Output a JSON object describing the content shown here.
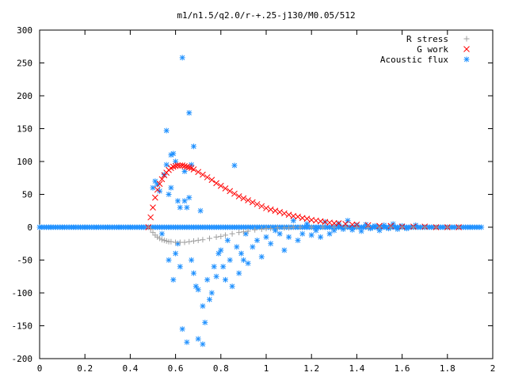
{
  "chart_data": {
    "type": "scatter",
    "title": "m1/n1.5/q2.0/r-+.25-j130/M0.05/512",
    "xlabel": "",
    "ylabel": "",
    "xlim": [
      0,
      2
    ],
    "ylim": [
      -200,
      300
    ],
    "xticks": [
      "0",
      "0.2",
      "0.4",
      "0.6",
      "0.8",
      "1",
      "1.2",
      "1.4",
      "1.6",
      "1.8",
      "2"
    ],
    "xtick_values": [
      0,
      0.2,
      0.4,
      0.6,
      0.8,
      1,
      1.2,
      1.4,
      1.6,
      1.8,
      2
    ],
    "yticks": [
      "300",
      "250",
      "200",
      "150",
      "100",
      "50",
      "0",
      "-50",
      "-100",
      "-150",
      "-200"
    ],
    "ytick_values": [
      300,
      250,
      200,
      150,
      100,
      50,
      0,
      -50,
      -100,
      -150,
      -200
    ],
    "legend_position": "top-right",
    "series": [
      {
        "name": "R stress",
        "marker": "+",
        "color": "#a0a0a0",
        "x": [
          0.48,
          0.49,
          0.5,
          0.51,
          0.52,
          0.53,
          0.54,
          0.55,
          0.56,
          0.57,
          0.58,
          0.6,
          0.62,
          0.64,
          0.66,
          0.68,
          0.7,
          0.72,
          0.75,
          0.78,
          0.8,
          0.82,
          0.85,
          0.88,
          0.9,
          0.92,
          0.95,
          0.98,
          1.0,
          1.02,
          1.05,
          1.08,
          1.1,
          1.12,
          1.15,
          1.2,
          1.25,
          1.3,
          1.35,
          1.4,
          1.45,
          1.5,
          1.55,
          1.6,
          1.65,
          1.7,
          1.75,
          1.8,
          1.85
        ],
        "y": [
          0,
          -3,
          -8,
          -12,
          -15,
          -17,
          -19,
          -20,
          -21,
          -22,
          -22,
          -23,
          -23,
          -23,
          -22,
          -21,
          -20,
          -19,
          -17,
          -15,
          -14,
          -12,
          -10,
          -8,
          -7,
          -6,
          -4,
          -3,
          -2,
          -2,
          -1,
          -1,
          -1,
          0,
          0,
          0,
          0,
          0,
          0,
          0,
          0,
          0,
          0,
          0,
          0,
          0,
          0,
          0,
          0
        ]
      },
      {
        "name": "G work",
        "marker": "x",
        "color": "#ff0000",
        "x": [
          0.48,
          0.49,
          0.5,
          0.51,
          0.52,
          0.53,
          0.54,
          0.55,
          0.56,
          0.57,
          0.58,
          0.59,
          0.6,
          0.61,
          0.62,
          0.63,
          0.64,
          0.65,
          0.66,
          0.67,
          0.68,
          0.7,
          0.72,
          0.74,
          0.76,
          0.78,
          0.8,
          0.82,
          0.84,
          0.86,
          0.88,
          0.9,
          0.92,
          0.94,
          0.96,
          0.98,
          1.0,
          1.02,
          1.04,
          1.06,
          1.08,
          1.1,
          1.12,
          1.14,
          1.16,
          1.18,
          1.2,
          1.22,
          1.24,
          1.26,
          1.28,
          1.3,
          1.32,
          1.35,
          1.38,
          1.4,
          1.45,
          1.5,
          1.55,
          1.6,
          1.65,
          1.7,
          1.75,
          1.8,
          1.85
        ],
        "y": [
          0,
          15,
          30,
          45,
          57,
          66,
          73,
          79,
          83,
          87,
          90,
          92,
          93,
          94,
          94,
          94,
          93,
          92,
          91,
          90,
          88,
          84,
          80,
          76,
          72,
          67,
          63,
          59,
          55,
          51,
          47,
          44,
          41,
          38,
          35,
          32,
          29,
          27,
          25,
          23,
          21,
          19,
          17,
          16,
          14,
          13,
          11,
          10,
          9,
          8,
          7,
          6,
          6,
          5,
          4,
          4,
          3,
          2,
          2,
          1,
          1,
          1,
          0,
          0,
          0
        ]
      },
      {
        "name": "Acoustic flux",
        "marker": "*",
        "color": "#1e90ff",
        "x": [
          0.0,
          0.05,
          0.1,
          0.15,
          0.2,
          0.25,
          0.3,
          0.35,
          0.4,
          0.45,
          0.48,
          0.5,
          0.51,
          0.52,
          0.53,
          0.54,
          0.55,
          0.56,
          0.56,
          0.57,
          0.57,
          0.58,
          0.58,
          0.59,
          0.59,
          0.6,
          0.6,
          0.61,
          0.61,
          0.62,
          0.62,
          0.63,
          0.63,
          0.64,
          0.64,
          0.65,
          0.65,
          0.66,
          0.66,
          0.67,
          0.67,
          0.68,
          0.68,
          0.69,
          0.7,
          0.7,
          0.71,
          0.72,
          0.72,
          0.73,
          0.74,
          0.75,
          0.76,
          0.77,
          0.78,
          0.79,
          0.8,
          0.81,
          0.82,
          0.83,
          0.84,
          0.85,
          0.86,
          0.87,
          0.88,
          0.89,
          0.9,
          0.91,
          0.92,
          0.94,
          0.96,
          0.98,
          1.0,
          1.02,
          1.04,
          1.06,
          1.08,
          1.1,
          1.12,
          1.14,
          1.16,
          1.18,
          1.2,
          1.22,
          1.24,
          1.26,
          1.28,
          1.3,
          1.32,
          1.34,
          1.36,
          1.38,
          1.4,
          1.42,
          1.44,
          1.46,
          1.48,
          1.5,
          1.52,
          1.54,
          1.56,
          1.58,
          1.6,
          1.62,
          1.64,
          1.66,
          1.7,
          1.75,
          1.8,
          1.85,
          1.9,
          1.95
        ],
        "y": [
          0,
          0,
          0,
          0,
          0,
          0,
          0,
          0,
          0,
          0,
          0,
          60,
          70,
          65,
          55,
          -10,
          80,
          147,
          95,
          -50,
          50,
          110,
          60,
          112,
          -80,
          100,
          -40,
          40,
          -25,
          30,
          -60,
          258,
          -155,
          85,
          40,
          -175,
          30,
          45,
          174,
          -50,
          95,
          -70,
          123,
          -90,
          -170,
          -95,
          25,
          -178,
          -120,
          -145,
          -80,
          -110,
          -100,
          -60,
          -75,
          -40,
          -35,
          -60,
          -80,
          -20,
          -50,
          -90,
          94,
          -30,
          -70,
          -40,
          -50,
          -10,
          -55,
          -30,
          -20,
          -45,
          -15,
          -25,
          -5,
          -10,
          -35,
          -15,
          10,
          -20,
          -10,
          5,
          -12,
          -5,
          -15,
          8,
          -10,
          -5,
          5,
          -3,
          10,
          -4,
          3,
          -6,
          4,
          -2,
          2,
          -5,
          3,
          -2,
          5,
          -3,
          2,
          -2,
          0,
          3,
          0,
          0,
          0,
          0,
          0,
          0
        ]
      }
    ]
  }
}
